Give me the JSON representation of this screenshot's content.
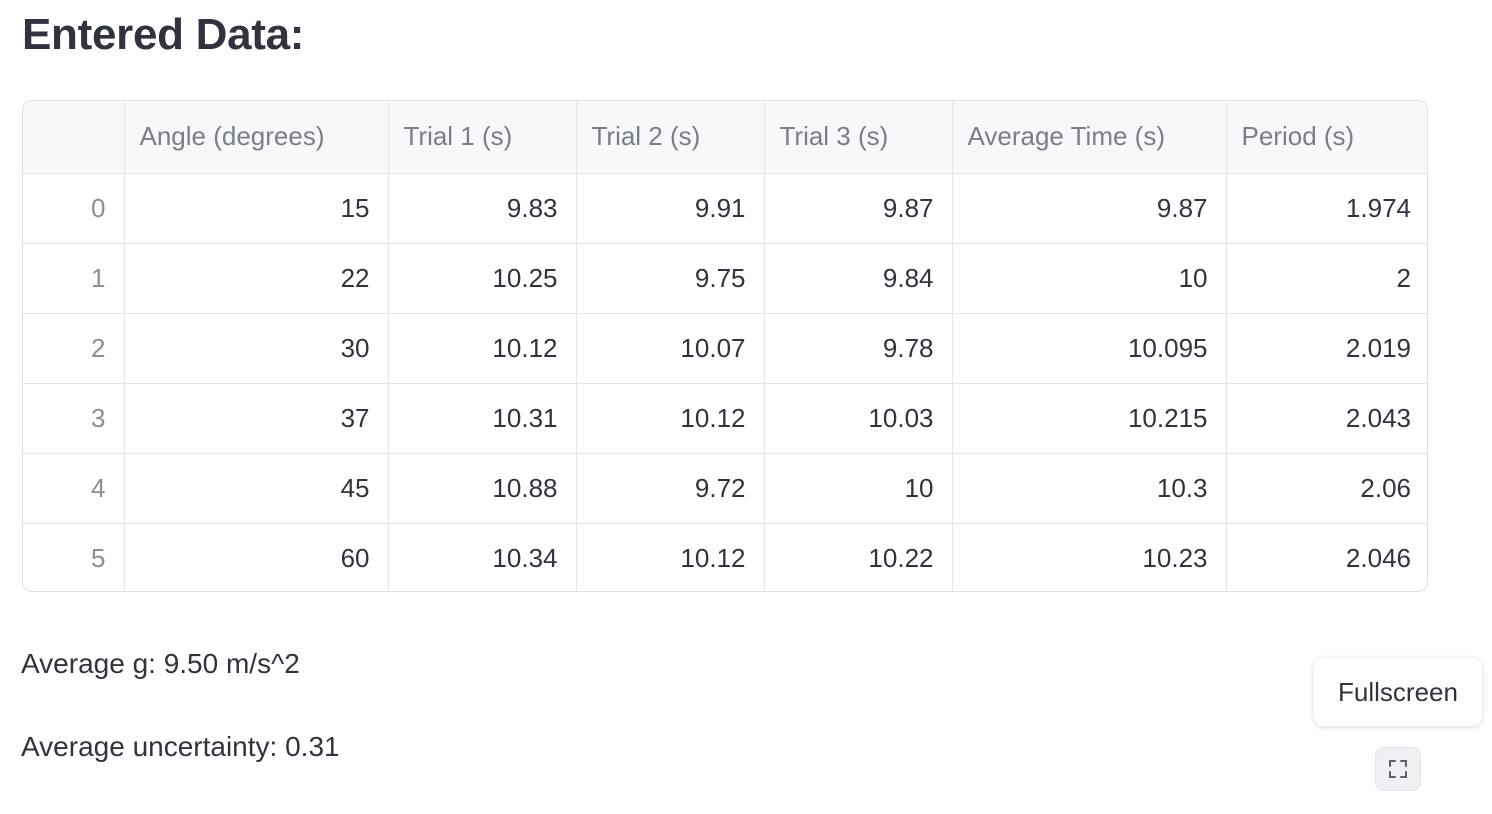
{
  "heading": "Entered Data:",
  "table": {
    "columns": [
      "",
      "Angle (degrees)",
      "Trial 1 (s)",
      "Trial 2 (s)",
      "Trial 3 (s)",
      "Average Time (s)",
      "Period (s)"
    ],
    "rows": [
      [
        "0",
        "15",
        "9.83",
        "9.91",
        "9.87",
        "9.87",
        "1.974"
      ],
      [
        "1",
        "22",
        "10.25",
        "9.75",
        "9.84",
        "10",
        "2"
      ],
      [
        "2",
        "30",
        "10.12",
        "10.07",
        "9.78",
        "10.095",
        "2.019"
      ],
      [
        "3",
        "37",
        "10.31",
        "10.12",
        "10.03",
        "10.215",
        "2.043"
      ],
      [
        "4",
        "45",
        "10.88",
        "9.72",
        "10",
        "10.3",
        "2.06"
      ],
      [
        "5",
        "60",
        "10.34",
        "10.12",
        "10.22",
        "10.23",
        "2.046"
      ]
    ]
  },
  "stats": {
    "average_g": "Average g: 9.50 m/s^2",
    "average_uncertainty": "Average uncertainty: 0.31"
  },
  "fullscreen": {
    "tooltip": "Fullscreen",
    "icon": "fullscreen-expand-icon"
  },
  "colors": {
    "text": "#31333f",
    "header_bg": "#f7f8fa",
    "header_text": "#7a7e89",
    "border": "#e3e5ea"
  }
}
